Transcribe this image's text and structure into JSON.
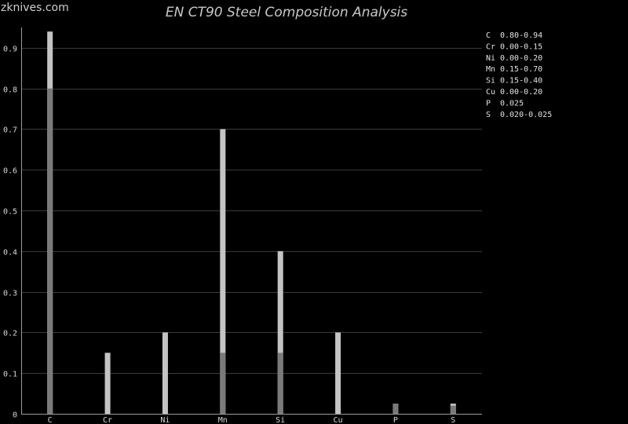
{
  "watermark": "zknives.com",
  "chart_data": {
    "type": "bar",
    "title": "EN CT90 Steel Composition Analysis",
    "categories": [
      "C",
      "Cr",
      "Ni",
      "Mn",
      "Si",
      "Cu",
      "P",
      "S"
    ],
    "series": [
      {
        "values": [
          0.8,
          0.0,
          0.0,
          0.15,
          0.15,
          0.0,
          0.025,
          0.02
        ]
      },
      {
        "values": [
          0.94,
          0.15,
          0.2,
          0.7,
          0.4,
          0.2,
          0.025,
          0.025
        ]
      }
    ],
    "ylim": [
      0,
      0.95
    ],
    "yticks": [
      0,
      0.1,
      0.2,
      0.3,
      0.4,
      0.5,
      0.6,
      0.7,
      0.8,
      0.9
    ],
    "ytick_labels": [
      "0",
      "0.1",
      "0.2",
      "0.3",
      "0.4",
      "0.5",
      "0.6",
      "0.7",
      "0.8",
      "0.9"
    ],
    "grid": true,
    "legend_position": "top-right",
    "legend": [
      {
        "element": "C",
        "value": "0.80-0.94"
      },
      {
        "element": "Cr",
        "value": "0.00-0.15"
      },
      {
        "element": "Ni",
        "value": "0.00-0.20"
      },
      {
        "element": "Mn",
        "value": "0.15-0.70"
      },
      {
        "element": "Si",
        "value": "0.15-0.40"
      },
      {
        "element": "Cu",
        "value": "0.00-0.20"
      },
      {
        "element": "P",
        "value": "0.025"
      },
      {
        "element": "S",
        "value": "0.020-0.025"
      }
    ],
    "colors": {
      "min_bar": "#7a7a7a",
      "max_bar": "#c4c4c4"
    }
  }
}
